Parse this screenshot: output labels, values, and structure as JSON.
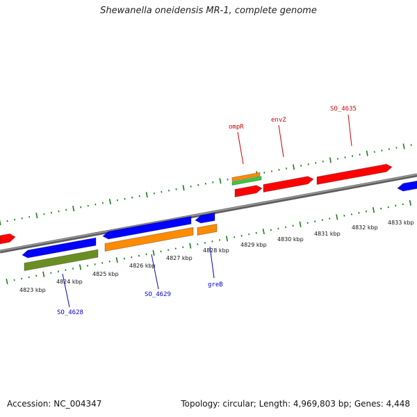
{
  "title": "Shewanella oneidensis MR-1, complete genome",
  "footer": {
    "accession": "Accession: NC_004347",
    "summary": "Topology: circular; Length: 4,969,803 bp; Genes: 4,448"
  },
  "colors": {
    "backbone": "#808080",
    "ticks": "#1a7a1a",
    "blue": "#0000ff",
    "red": "#ff0000",
    "orange": "#ff8c00",
    "green": "#3cc83c",
    "olive": "#6b8e23",
    "blue_label": "#0000cc",
    "red_label": "#cc0000"
  },
  "kbp_labels": [
    "4823 kbp",
    "4824 kbp",
    "4825 kbp",
    "4826 kbp",
    "4827 kbp",
    "4828 kbp",
    "4829 kbp",
    "4830 kbp",
    "4831 kbp",
    "4832 kbp",
    "4833 kbp"
  ],
  "gene_labels": {
    "SO_4628": "SO_4628",
    "SO_4629": "SO_4629",
    "greB": "greB",
    "ompR": "ompR",
    "envZ": "envZ",
    "SO_4635": "SO_4635"
  }
}
